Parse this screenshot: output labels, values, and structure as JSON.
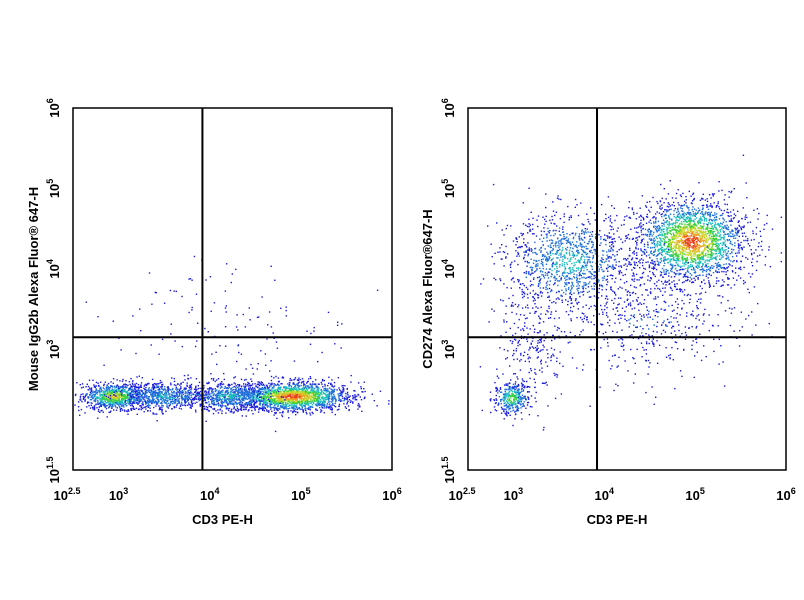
{
  "chart_data": [
    {
      "type": "scatter",
      "xlabel": "CD3 PE-H",
      "ylabel": "Mouse IgG2b Alexa Fluor® 647-H",
      "xscale": "log",
      "yscale": "log",
      "xlim_exp": [
        2.5,
        6
      ],
      "ylim_exp": [
        1.5,
        6
      ],
      "x_ticks": [
        {
          "base": "10",
          "exp": "2.5",
          "value_exp": 2.5
        },
        {
          "base": "10",
          "exp": "3",
          "value_exp": 3
        },
        {
          "base": "10",
          "exp": "4",
          "value_exp": 4
        },
        {
          "base": "10",
          "exp": "5",
          "value_exp": 5
        },
        {
          "base": "10",
          "exp": "6",
          "value_exp": 6
        }
      ],
      "y_ticks": [
        {
          "base": "10",
          "exp": "1.5",
          "value_exp": 1.5
        },
        {
          "base": "10",
          "exp": "3",
          "value_exp": 3
        },
        {
          "base": "10",
          "exp": "4",
          "value_exp": 4
        },
        {
          "base": "10",
          "exp": "5",
          "value_exp": 5
        },
        {
          "base": "10",
          "exp": "6",
          "value_exp": 6
        }
      ],
      "gate_x_exp": 3.92,
      "gate_y_exp": 3.15,
      "clusters": [
        {
          "cx_exp": 2.95,
          "cy_exp": 2.42,
          "sx": 0.18,
          "sy": 0.08,
          "n": 900,
          "density": 0.85
        },
        {
          "cx_exp": 3.5,
          "cy_exp": 2.42,
          "sx": 0.25,
          "sy": 0.09,
          "n": 700,
          "density": 0.45
        },
        {
          "cx_exp": 4.9,
          "cy_exp": 2.42,
          "sx": 0.32,
          "sy": 0.09,
          "n": 1800,
          "density": 1.0
        },
        {
          "cx_exp": 4.2,
          "cy_exp": 2.42,
          "sx": 0.22,
          "sy": 0.09,
          "n": 600,
          "density": 0.5
        },
        {
          "cx_exp": 4.2,
          "cy_exp": 3.3,
          "sx": 0.7,
          "sy": 0.4,
          "n": 120,
          "density": 0.0
        }
      ]
    },
    {
      "type": "scatter",
      "xlabel": "CD3 PE-H",
      "ylabel": "CD274 Alexa Fluor®647-H",
      "xscale": "log",
      "yscale": "log",
      "xlim_exp": [
        2.5,
        6
      ],
      "ylim_exp": [
        1.5,
        6
      ],
      "x_ticks": [
        {
          "base": "10",
          "exp": "2.5",
          "value_exp": 2.5
        },
        {
          "base": "10",
          "exp": "3",
          "value_exp": 3
        },
        {
          "base": "10",
          "exp": "4",
          "value_exp": 4
        },
        {
          "base": "10",
          "exp": "5",
          "value_exp": 5
        },
        {
          "base": "10",
          "exp": "6",
          "value_exp": 6
        }
      ],
      "y_ticks": [
        {
          "base": "10",
          "exp": "1.5",
          "value_exp": 1.5
        },
        {
          "base": "10",
          "exp": "3",
          "value_exp": 3
        },
        {
          "base": "10",
          "exp": "4",
          "value_exp": 4
        },
        {
          "base": "10",
          "exp": "5",
          "value_exp": 5
        },
        {
          "base": "10",
          "exp": "6",
          "value_exp": 6
        }
      ],
      "gate_x_exp": 3.92,
      "gate_y_exp": 3.15,
      "clusters": [
        {
          "cx_exp": 4.95,
          "cy_exp": 4.35,
          "sx": 0.3,
          "sy": 0.25,
          "n": 2200,
          "density": 1.0
        },
        {
          "cx_exp": 3.6,
          "cy_exp": 4.1,
          "sx": 0.35,
          "sy": 0.3,
          "n": 1100,
          "density": 0.5
        },
        {
          "cx_exp": 2.98,
          "cy_exp": 2.4,
          "sx": 0.1,
          "sy": 0.1,
          "n": 350,
          "density": 0.7
        },
        {
          "cx_exp": 4.5,
          "cy_exp": 3.4,
          "sx": 0.45,
          "sy": 0.35,
          "n": 500,
          "density": 0.2
        },
        {
          "cx_exp": 3.2,
          "cy_exp": 3.1,
          "sx": 0.2,
          "sy": 0.35,
          "n": 250,
          "density": 0.15
        }
      ]
    }
  ]
}
